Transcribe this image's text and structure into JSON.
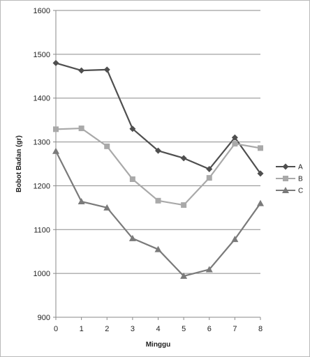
{
  "chart_data": {
    "type": "line",
    "title": "",
    "xlabel": "Minggu",
    "ylabel": "Bobot Badan (gr)",
    "x": [
      0,
      1,
      2,
      3,
      4,
      5,
      6,
      7,
      8
    ],
    "x_tick_labels": [
      "0",
      "1",
      "2",
      "3",
      "4",
      "5",
      "6",
      "7",
      "8"
    ],
    "y_tick_labels": [
      "900",
      "1000",
      "1100",
      "1200",
      "1300",
      "1400",
      "1500",
      "1600"
    ],
    "y_ticks": [
      900,
      1000,
      1100,
      1200,
      1300,
      1400,
      1500,
      1600
    ],
    "ylim": [
      900,
      1600
    ],
    "xlim": [
      0,
      8
    ],
    "grid": "horizontal",
    "legend_position": "right",
    "series": [
      {
        "name": "A",
        "color": "#4f4f4f",
        "marker": "diamond",
        "values": [
          1480,
          1463,
          1465,
          1330,
          1280,
          1263,
          1238,
          1310,
          1228
        ]
      },
      {
        "name": "B",
        "color": "#a9a9a9",
        "marker": "square",
        "values": [
          1329,
          1331,
          1290,
          1215,
          1166,
          1156,
          1218,
          1296,
          1286
        ]
      },
      {
        "name": "C",
        "color": "#7a7a7a",
        "marker": "triangle",
        "values": [
          1279,
          1164,
          1150,
          1080,
          1055,
          994,
          1009,
          1078,
          1160
        ]
      }
    ]
  }
}
